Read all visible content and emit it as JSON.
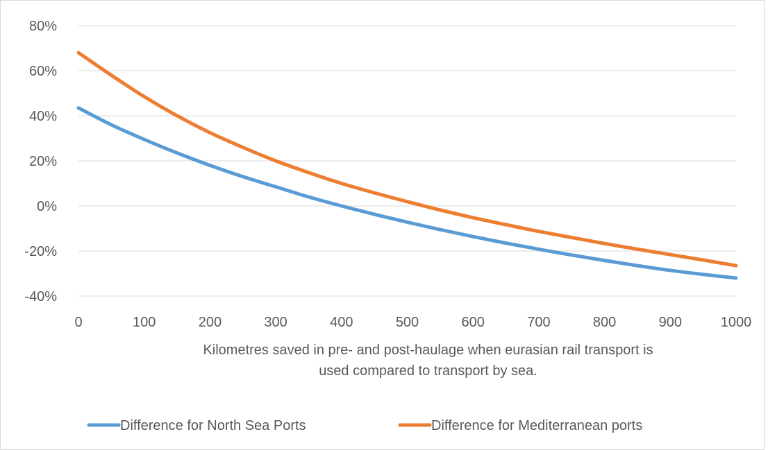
{
  "chart_data": {
    "type": "line",
    "title": "",
    "xlabel": "Kilometres saved in pre- and post-haulage when eurasian rail transport is used compared to transport by sea.",
    "xlabel_lines": [
      "Kilometres saved in pre- and post-haulage when eurasian rail transport is",
      "used compared to transport by sea."
    ],
    "ylabel": "",
    "xlim": [
      0,
      1000
    ],
    "ylim": [
      -40,
      80
    ],
    "x_ticks": [
      "0",
      "100",
      "200",
      "300",
      "400",
      "500",
      "600",
      "700",
      "800",
      "900",
      "1000"
    ],
    "y_ticks": [
      "-40%",
      "-20%",
      "0%",
      "20%",
      "40%",
      "60%",
      "80%"
    ],
    "y_tick_values": [
      -40,
      -20,
      0,
      20,
      40,
      60,
      80
    ],
    "grid": true,
    "legend_position": "bottom",
    "x": [
      0,
      50,
      100,
      150,
      200,
      250,
      300,
      350,
      400,
      450,
      500,
      550,
      600,
      650,
      700,
      750,
      800,
      850,
      900,
      950,
      1000
    ],
    "series": [
      {
        "name": "Difference for North Sea Ports",
        "color": "#5B9BD5",
        "values": [
          43.5,
          36,
          29.5,
          23.5,
          18,
          13,
          8.5,
          4,
          0,
          -3.7,
          -7.2,
          -10.5,
          -13.6,
          -16.5,
          -19.2,
          -21.8,
          -24.2,
          -26.5,
          -28.6,
          -30.4,
          -32
        ]
      },
      {
        "name": "Difference for Mediterranean ports",
        "color": "#ED7D31",
        "values": [
          68,
          58,
          48.5,
          40,
          32.5,
          26,
          20,
          14.8,
          10,
          5.8,
          1.9,
          -1.8,
          -5.2,
          -8.3,
          -11.3,
          -14,
          -16.7,
          -19.2,
          -21.6,
          -24,
          -26.5
        ]
      }
    ]
  }
}
